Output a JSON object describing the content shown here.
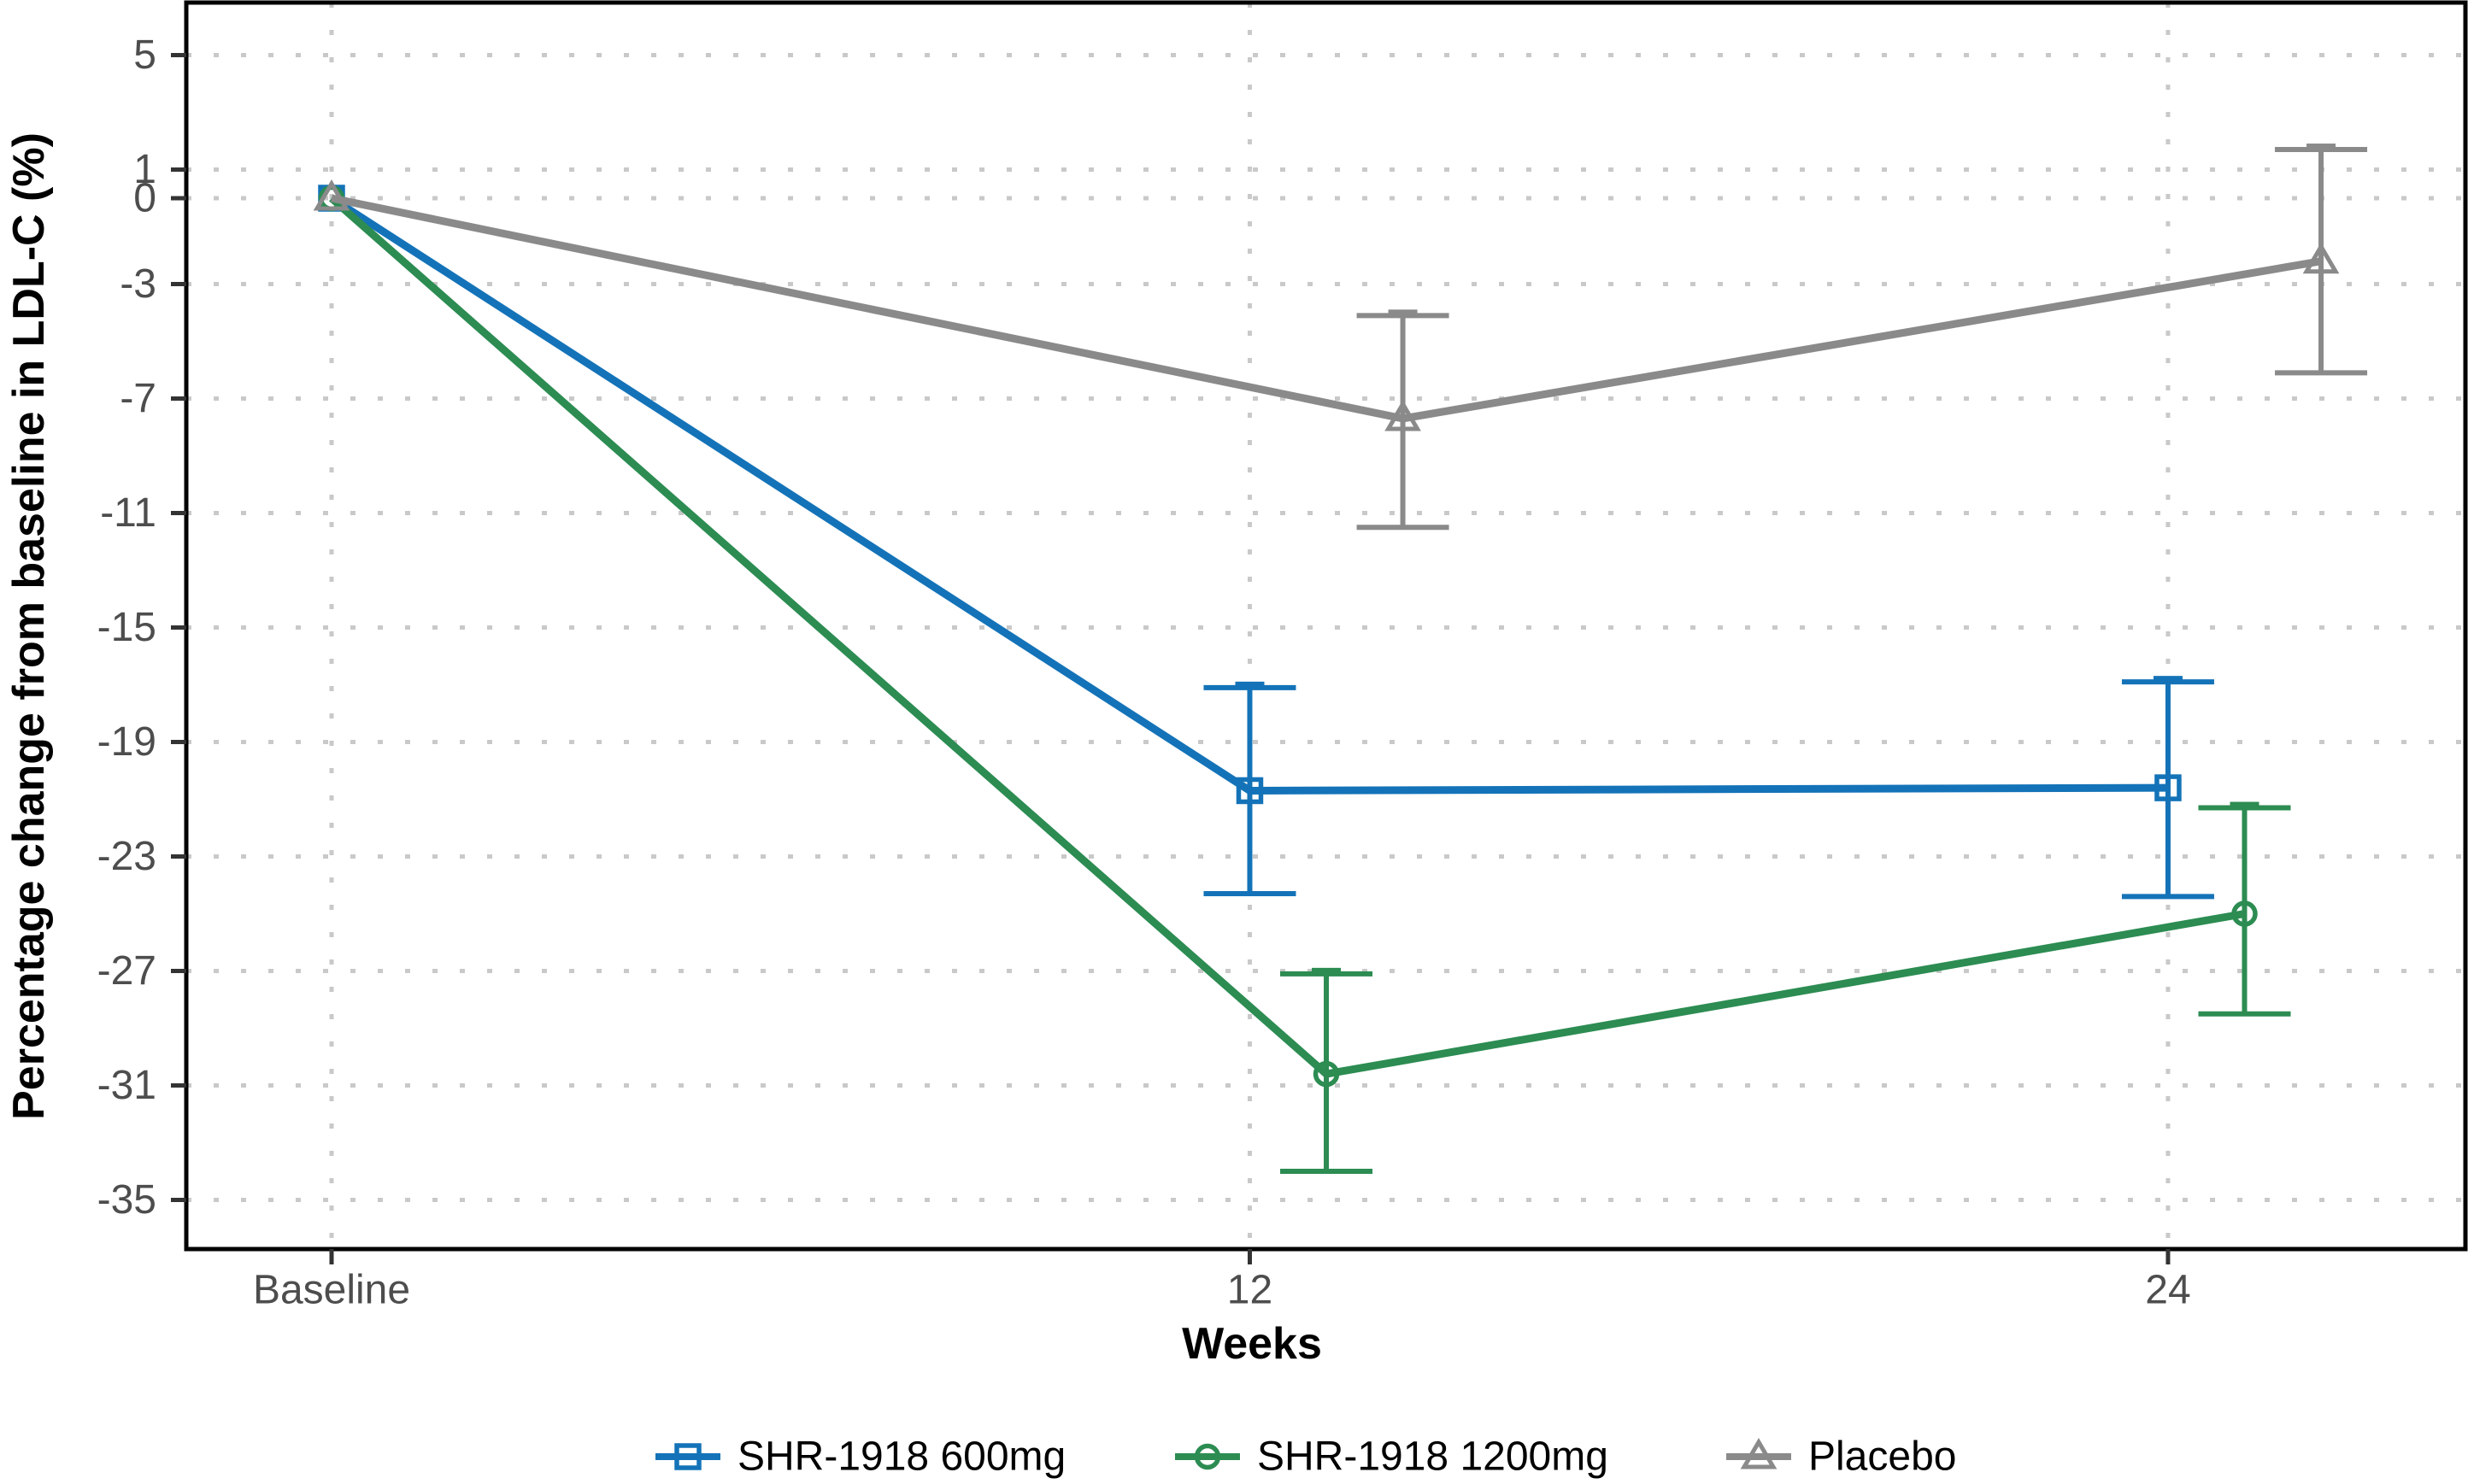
{
  "figure": {
    "background": "#ffffff",
    "y_axis": {
      "title": "Percentage change from baseline in LDL-C (%)",
      "tick_labels": [
        "5",
        "1",
        "0",
        "-3",
        "-7",
        "-11",
        "-15",
        "-19",
        "-23",
        "-27",
        "-31",
        "-35"
      ],
      "tick_values": [
        5,
        1,
        0,
        -3,
        -7,
        -11,
        -15,
        -19,
        -23,
        -27,
        -31,
        -35
      ],
      "label_color": "#4d4d4d",
      "title_color": "#000000"
    },
    "x_axis": {
      "title": "Weeks",
      "tick_labels": [
        "Baseline",
        "12",
        "24"
      ],
      "tick_weeks": [
        0,
        12,
        24
      ],
      "label_color": "#4d4d4d",
      "title_color": "#000000"
    },
    "grid_color": "#c9c9c9",
    "border_color": "#000000",
    "legend": {
      "position": "bottom",
      "items": [
        {
          "label": "SHR-1918 600mg",
          "marker": "square",
          "color": "#1473b8"
        },
        {
          "label": "SHR-1918 1200mg",
          "marker": "circle",
          "color": "#2c8c52"
        },
        {
          "label": "Placebo",
          "marker": "triangle",
          "color": "#8a8a8a"
        }
      ]
    }
  },
  "chart_data": {
    "type": "line",
    "title": "",
    "xlabel": "Weeks",
    "ylabel": "Percentage change from baseline in LDL-C (%)",
    "x_categories": [
      "Baseline",
      "12",
      "24"
    ],
    "x_weeks_nominal": [
      0,
      12,
      24
    ],
    "ylim": [
      -36.7,
      6.8
    ],
    "yticks": [
      5,
      1,
      0,
      -3,
      -7,
      -11,
      -15,
      -19,
      -23,
      -27,
      -31,
      -35
    ],
    "grid": "dotted",
    "legend_position": "bottom",
    "error_bars": true,
    "series": [
      {
        "name": "SHR-1918 600mg",
        "color": "#1473b8",
        "marker": "square",
        "dodge_offset_weeks": 0,
        "x_plot_weeks": [
          0,
          12,
          24
        ],
        "values": [
          0,
          -20.7,
          -20.6
        ],
        "ci_low": [
          null,
          -24.3,
          -24.4
        ],
        "ci_high": [
          null,
          -17.1,
          -16.9
        ]
      },
      {
        "name": "SHR-1918 1200mg",
        "color": "#2c8c52",
        "marker": "circle",
        "dodge_offset_weeks": 1,
        "x_plot_weeks": [
          0,
          13,
          25
        ],
        "values": [
          0,
          -30.6,
          -25.0
        ],
        "ci_low": [
          null,
          -34.0,
          -28.5
        ],
        "ci_high": [
          null,
          -27.1,
          -21.3
        ]
      },
      {
        "name": "Placebo",
        "color": "#8a8a8a",
        "marker": "triangle",
        "dodge_offset_weeks": 2,
        "x_plot_weeks": [
          0,
          14,
          26
        ],
        "values": [
          0,
          -7.7,
          -2.2
        ],
        "ci_low": [
          null,
          -11.5,
          -6.1
        ],
        "ci_high": [
          null,
          -4.1,
          1.7
        ]
      }
    ]
  }
}
